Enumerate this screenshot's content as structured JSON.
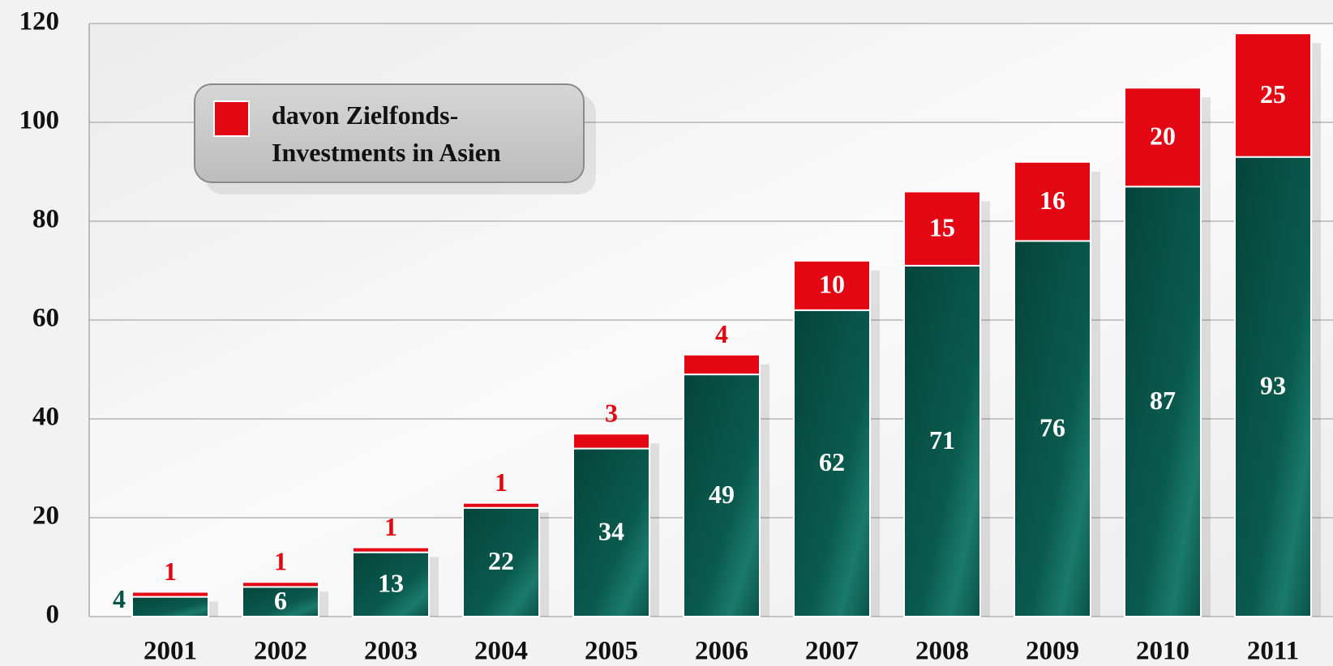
{
  "chart_data": {
    "type": "stacked_bar",
    "categories": [
      "2001",
      "2002",
      "2003",
      "2004",
      "2005",
      "2006",
      "2007",
      "2008",
      "2009",
      "2010",
      "2011"
    ],
    "series": [
      {
        "color": "#0b5449",
        "values": [
          4,
          6,
          13,
          22,
          34,
          49,
          62,
          71,
          76,
          87,
          93
        ]
      },
      {
        "name": "davon Zielfonds-Investments in Asien",
        "color": "#e30613",
        "values": [
          1,
          1,
          1,
          1,
          3,
          4,
          10,
          15,
          16,
          20,
          25
        ]
      }
    ],
    "ylim": [
      0,
      120
    ],
    "yticks": [
      0,
      20,
      40,
      60,
      80,
      100,
      120
    ],
    "grid": true,
    "legend": "top-left"
  }
}
